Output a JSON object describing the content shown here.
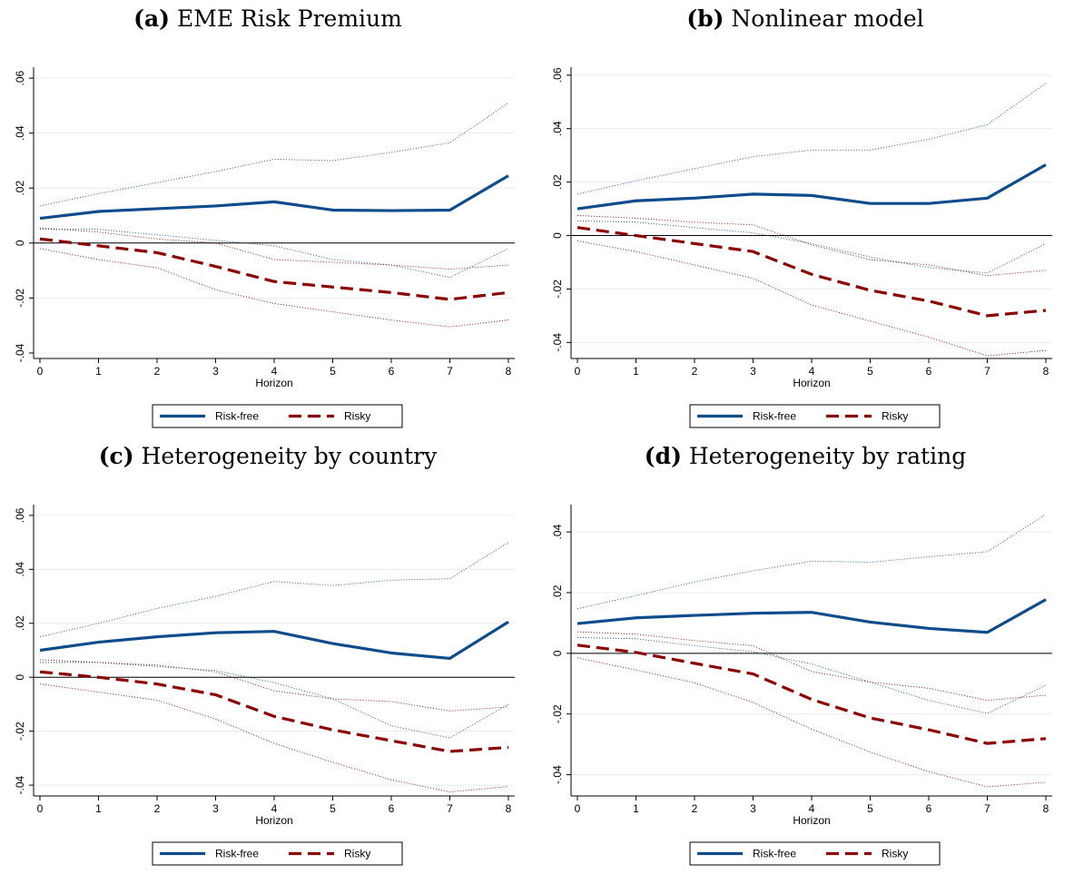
{
  "panels": [
    {
      "letter": "(a)",
      "title": "EME Risk Premium"
    },
    {
      "letter": "(b)",
      "title": "Nonlinear model"
    },
    {
      "letter": "(c)",
      "title": "Heterogeneity by country"
    },
    {
      "letter": "(d)",
      "title": "Heterogeneity by rating"
    }
  ],
  "colors": {
    "risk_free": "#0f4c8a",
    "risky": "#8b0000",
    "grid": "#e8ecf2"
  },
  "chart_data": [
    {
      "type": "line",
      "title": "EME Risk Premium",
      "xlabel": "Horizon",
      "ylabel": "",
      "x": [
        0,
        1,
        2,
        3,
        4,
        5,
        6,
        7,
        8
      ],
      "xticks": [
        "0",
        "1",
        "2",
        "3",
        "4",
        "5",
        "6",
        "7",
        "8"
      ],
      "yticks": [
        -0.04,
        -0.02,
        0,
        0.02,
        0.04,
        0.06
      ],
      "ytick_labels": [
        "-.04",
        "-.02",
        "0",
        ".02",
        ".04",
        ".06"
      ],
      "ylim": [
        -0.042,
        0.064
      ],
      "grid": true,
      "legend": "bottom",
      "series": [
        {
          "name": "Risk-free",
          "style": "solid",
          "values": [
            0.009,
            0.0115,
            0.0125,
            0.0135,
            0.015,
            0.012,
            0.0118,
            0.012,
            0.0245
          ],
          "upper": [
            0.0135,
            0.018,
            0.022,
            0.026,
            0.0305,
            0.03,
            0.033,
            0.0365,
            0.051
          ],
          "lower": [
            0.005,
            0.005,
            0.003,
            0.001,
            -0.001,
            -0.006,
            -0.008,
            -0.0125,
            -0.002
          ]
        },
        {
          "name": "Risky",
          "style": "dashed",
          "values": [
            0.0015,
            -0.001,
            -0.0035,
            -0.0085,
            -0.014,
            -0.016,
            -0.018,
            -0.0205,
            -0.018
          ],
          "upper": [
            0.0055,
            0.004,
            0.0015,
            0.0,
            -0.006,
            -0.007,
            -0.008,
            -0.0095,
            -0.008
          ],
          "lower": [
            -0.002,
            -0.006,
            -0.009,
            -0.017,
            -0.022,
            -0.025,
            -0.028,
            -0.0305,
            -0.028
          ]
        }
      ]
    },
    {
      "type": "line",
      "title": "Nonlinear model",
      "xlabel": "Horizon",
      "ylabel": "",
      "x": [
        0,
        1,
        2,
        3,
        4,
        5,
        6,
        7,
        8
      ],
      "xticks": [
        "0",
        "1",
        "2",
        "3",
        "4",
        "5",
        "6",
        "7",
        "8"
      ],
      "yticks": [
        -0.04,
        -0.02,
        0,
        0.02,
        0.04,
        0.06
      ],
      "ytick_labels": [
        "-.04",
        "-.02",
        "0",
        ".02",
        ".04",
        ".06"
      ],
      "ylim": [
        -0.046,
        0.063
      ],
      "grid": true,
      "legend": "bottom",
      "series": [
        {
          "name": "Risk-free",
          "style": "solid",
          "values": [
            0.01,
            0.013,
            0.014,
            0.0155,
            0.015,
            0.012,
            0.012,
            0.014,
            0.0265
          ],
          "upper": [
            0.0155,
            0.0205,
            0.025,
            0.0295,
            0.032,
            0.032,
            0.036,
            0.0415,
            0.057
          ],
          "lower": [
            0.0055,
            0.005,
            0.003,
            0.001,
            -0.003,
            -0.008,
            -0.012,
            -0.014,
            -0.003
          ]
        },
        {
          "name": "Risky",
          "style": "dashed",
          "values": [
            0.003,
            0.0,
            -0.003,
            -0.006,
            -0.0145,
            -0.0205,
            -0.0245,
            -0.03,
            -0.028
          ],
          "upper": [
            0.0075,
            0.0065,
            0.005,
            0.004,
            -0.0035,
            -0.009,
            -0.011,
            -0.015,
            -0.013
          ],
          "lower": [
            -0.002,
            -0.006,
            -0.011,
            -0.016,
            -0.026,
            -0.032,
            -0.038,
            -0.045,
            -0.043
          ]
        }
      ]
    },
    {
      "type": "line",
      "title": "Heterogeneity by country",
      "xlabel": "Horizon",
      "ylabel": "",
      "x": [
        0,
        1,
        2,
        3,
        4,
        5,
        6,
        7,
        8
      ],
      "xticks": [
        "0",
        "1",
        "2",
        "3",
        "4",
        "5",
        "6",
        "7",
        "8"
      ],
      "yticks": [
        -0.04,
        -0.02,
        0,
        0.02,
        0.04,
        0.06
      ],
      "ytick_labels": [
        "-.04",
        "-.02",
        "0",
        ".02",
        ".04",
        ".06"
      ],
      "ylim": [
        -0.044,
        0.064
      ],
      "grid": true,
      "legend": "bottom",
      "series": [
        {
          "name": "Risk-free",
          "style": "solid",
          "values": [
            0.01,
            0.013,
            0.015,
            0.0165,
            0.017,
            0.0125,
            0.009,
            0.007,
            0.0205
          ],
          "upper": [
            0.015,
            0.02,
            0.0255,
            0.03,
            0.0355,
            0.034,
            0.036,
            0.0365,
            0.05
          ],
          "lower": [
            0.0055,
            0.0055,
            0.004,
            0.0025,
            -0.002,
            -0.008,
            -0.018,
            -0.0225,
            -0.01
          ]
        },
        {
          "name": "Risky",
          "style": "dashed",
          "values": [
            0.002,
            0.0,
            -0.0025,
            -0.0065,
            -0.0145,
            -0.0195,
            -0.0235,
            -0.0275,
            -0.026
          ],
          "upper": [
            0.0065,
            0.0055,
            0.0045,
            0.002,
            -0.005,
            -0.008,
            -0.009,
            -0.0125,
            -0.011
          ],
          "lower": [
            -0.0025,
            -0.0055,
            -0.0085,
            -0.0155,
            -0.0245,
            -0.0315,
            -0.038,
            -0.0425,
            -0.0405
          ]
        }
      ]
    },
    {
      "type": "line",
      "title": "Heterogeneity by rating",
      "xlabel": "Horizon",
      "ylabel": "",
      "x": [
        0,
        1,
        2,
        3,
        4,
        5,
        6,
        7,
        8
      ],
      "xticks": [
        "0",
        "1",
        "2",
        "3",
        "4",
        "5",
        "6",
        "7",
        "8"
      ],
      "yticks": [
        -0.04,
        -0.02,
        0,
        0.02,
        0.04
      ],
      "ytick_labels": [
        "-.04",
        "-.02",
        "0",
        ".02",
        ".04"
      ],
      "ylim": [
        -0.047,
        0.049
      ],
      "grid": true,
      "legend": "bottom",
      "series": [
        {
          "name": "Risk-free",
          "style": "solid",
          "values": [
            0.0098,
            0.0117,
            0.0125,
            0.0132,
            0.0135,
            0.0103,
            0.0082,
            0.0069,
            0.0177
          ],
          "upper": [
            0.0147,
            0.019,
            0.0235,
            0.0272,
            0.0304,
            0.03,
            0.0318,
            0.0335,
            0.0458
          ],
          "lower": [
            0.0052,
            0.0048,
            0.0025,
            0.0005,
            -0.0035,
            -0.0095,
            -0.0155,
            -0.0198,
            -0.0105
          ]
        },
        {
          "name": "Risky",
          "style": "dashed",
          "values": [
            0.0027,
            0.0003,
            -0.0033,
            -0.0068,
            -0.0152,
            -0.0213,
            -0.0252,
            -0.0297,
            -0.0281
          ],
          "upper": [
            0.0071,
            0.0063,
            0.0042,
            0.0025,
            -0.006,
            -0.0095,
            -0.0115,
            -0.0155,
            -0.0138
          ],
          "lower": [
            -0.0015,
            -0.0055,
            -0.0097,
            -0.0162,
            -0.025,
            -0.0325,
            -0.039,
            -0.044,
            -0.0425
          ]
        }
      ]
    }
  ]
}
